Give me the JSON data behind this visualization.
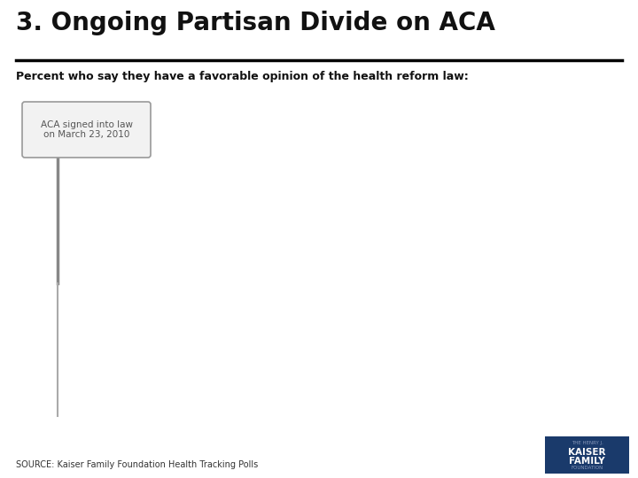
{
  "title": "3. Ongoing Partisan Divide on ACA",
  "subtitle": "Percent who say they have a favorable opinion of the health reform law:",
  "source_text": "SOURCE: Kaiser Family Foundation Health Tracking Polls",
  "annotation_text": "ACA signed into law\non March 23, 2010",
  "bg_color": "#ffffff",
  "title_fontsize": 20,
  "subtitle_fontsize": 9,
  "source_fontsize": 7,
  "annotation_fontsize": 7.5,
  "divider_color": "#000000",
  "vline_color_top": "#888888",
  "vline_color_bottom": "#aaaaaa",
  "logo_color": "#1a3a6b",
  "title_color": "#111111",
  "subtitle_color": "#111111",
  "source_color": "#333333"
}
